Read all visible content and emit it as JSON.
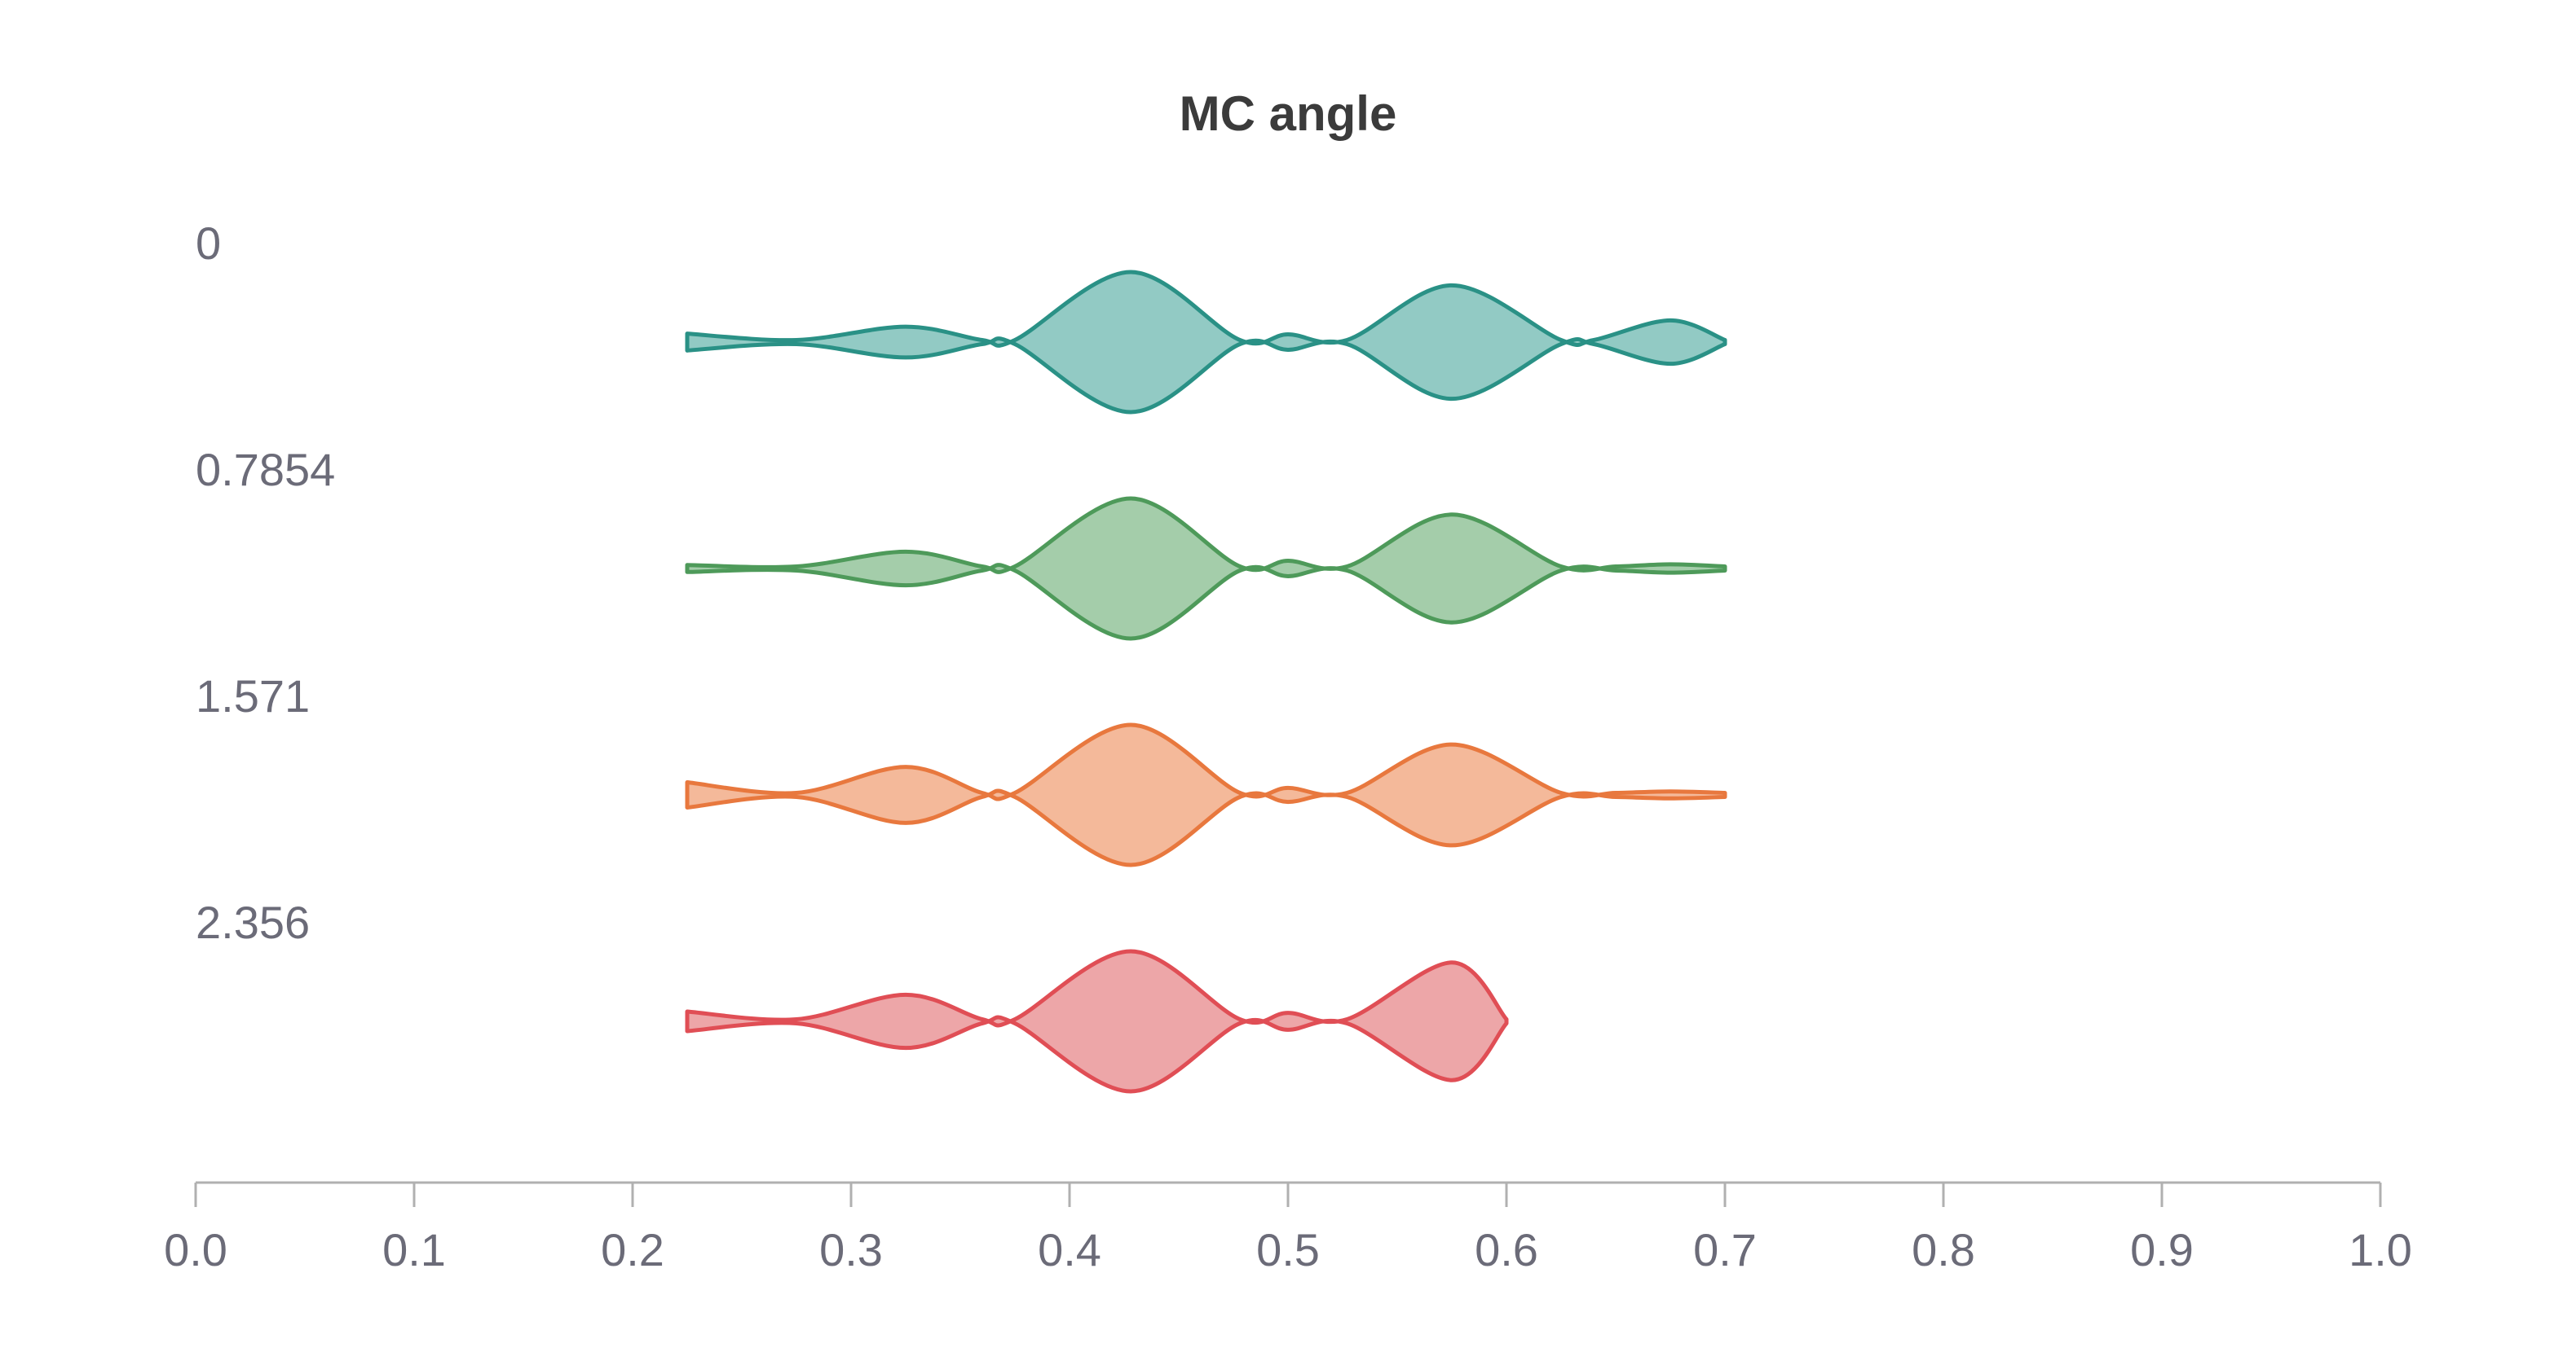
{
  "chart_data": {
    "type": "violin",
    "title": "MC angle",
    "xlabel": "",
    "ylabel": "",
    "xlim": [
      0,
      1
    ],
    "xticks": [
      "0.0",
      "0.1",
      "0.2",
      "0.3",
      "0.4",
      "0.5",
      "0.6",
      "0.7",
      "0.8",
      "0.9",
      "1.0"
    ],
    "series": [
      {
        "name": "0",
        "color": "#2a9186",
        "fill": "#92cac4",
        "density": [
          [
            0.225,
            0.12
          ],
          [
            0.275,
            0.0
          ],
          [
            0.325,
            0.22
          ],
          [
            0.36,
            0.0
          ],
          [
            0.375,
            0.0
          ],
          [
            0.428,
            1.0
          ],
          [
            0.478,
            0.0
          ],
          [
            0.5,
            0.11
          ],
          [
            0.527,
            0.0
          ],
          [
            0.575,
            0.81
          ],
          [
            0.625,
            0.0
          ],
          [
            0.64,
            0.0
          ],
          [
            0.675,
            0.31
          ],
          [
            0.7,
            0.0
          ]
        ]
      },
      {
        "name": "0.7854",
        "color": "#4e9a5a",
        "fill": "#a4cdaa",
        "density": [
          [
            0.225,
            0.05
          ],
          [
            0.275,
            0.0
          ],
          [
            0.325,
            0.24
          ],
          [
            0.36,
            0.0
          ],
          [
            0.375,
            0.0
          ],
          [
            0.428,
            1.0
          ],
          [
            0.478,
            0.0
          ],
          [
            0.5,
            0.11
          ],
          [
            0.527,
            0.0
          ],
          [
            0.575,
            0.77
          ],
          [
            0.625,
            0.0
          ],
          [
            0.65,
            0.0
          ],
          [
            0.675,
            0.06
          ],
          [
            0.7,
            0.0
          ]
        ]
      },
      {
        "name": "1.571",
        "color": "#e8783e",
        "fill": "#f4b99a",
        "density": [
          [
            0.225,
            0.18
          ],
          [
            0.275,
            0.0
          ],
          [
            0.325,
            0.4
          ],
          [
            0.36,
            0.0
          ],
          [
            0.375,
            0.0
          ],
          [
            0.428,
            1.0
          ],
          [
            0.478,
            0.0
          ],
          [
            0.5,
            0.1
          ],
          [
            0.527,
            0.0
          ],
          [
            0.575,
            0.72
          ],
          [
            0.625,
            0.0
          ],
          [
            0.65,
            0.0
          ],
          [
            0.675,
            0.05
          ],
          [
            0.7,
            0.0
          ]
        ]
      },
      {
        "name": "2.356",
        "color": "#e04e55",
        "fill": "#eda6a8",
        "density": [
          [
            0.225,
            0.14
          ],
          [
            0.275,
            0.0
          ],
          [
            0.325,
            0.38
          ],
          [
            0.36,
            0.0
          ],
          [
            0.375,
            0.0
          ],
          [
            0.428,
            1.0
          ],
          [
            0.478,
            0.0
          ],
          [
            0.5,
            0.12
          ],
          [
            0.527,
            0.0
          ],
          [
            0.575,
            0.84
          ],
          [
            0.6,
            0.0
          ]
        ]
      }
    ]
  }
}
